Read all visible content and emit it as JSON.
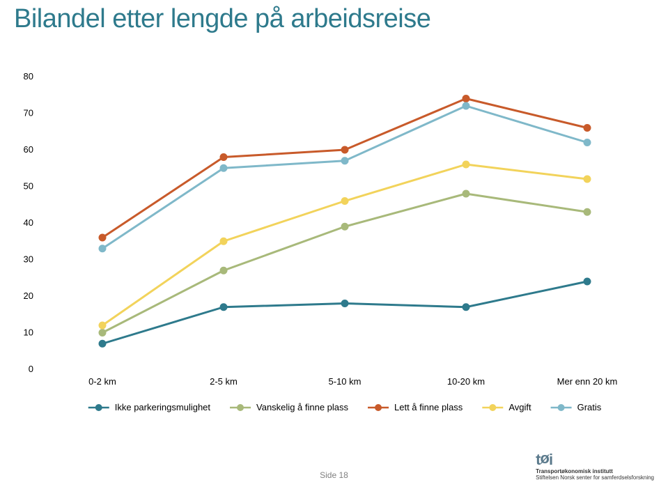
{
  "title": "Bilandel etter lengde på arbeidsreise",
  "title_color": "#2e7a8c",
  "footer": "Side 18",
  "brand": {
    "logo_color": "#5b7a8c",
    "line1": "Transportøkonomisk institutt",
    "line2": "Stiftelsen Norsk senter for samferdselsforskning",
    "text_color": "#333333"
  },
  "chart": {
    "type": "line",
    "background_color": "#ffffff",
    "categories": [
      "0-2 km",
      "2-5 km",
      "5-10 km",
      "10-20 km",
      "Mer enn 20 km"
    ],
    "ylim": [
      0,
      80
    ],
    "ytick_step": 10,
    "axis_color": "#888888",
    "tick_font_size": 13,
    "tick_color": "#000000",
    "line_width": 3,
    "marker_radius": 5,
    "series": [
      {
        "name": "Ikke parkeringsmulighet",
        "color": "#2e7a8c",
        "values": [
          7,
          17,
          18,
          17,
          24
        ]
      },
      {
        "name": "Vanskelig å finne plass",
        "color": "#a8b97a",
        "values": [
          10,
          27,
          39,
          48,
          43
        ]
      },
      {
        "name": "Lett å finne plass",
        "color": "#c85a2a",
        "values": [
          36,
          58,
          60,
          74,
          66
        ]
      },
      {
        "name": "Avgift",
        "color": "#f2d35b",
        "values": [
          12,
          35,
          46,
          56,
          52
        ]
      },
      {
        "name": "Gratis",
        "color": "#7fb8c9",
        "values": [
          33,
          55,
          57,
          72,
          62
        ]
      }
    ],
    "legend": {
      "font_size": 13,
      "marker_radius": 5,
      "line_len": 30
    }
  }
}
